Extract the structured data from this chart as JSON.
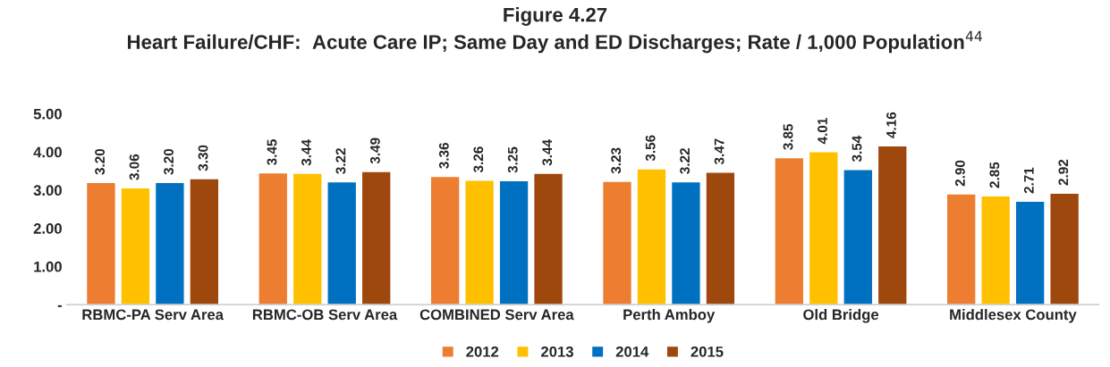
{
  "chart_data": {
    "type": "bar",
    "title": "Figure 4.27",
    "subtitle": "Heart Failure/CHF:  Acute Care IP; Same Day and ED Discharges; Rate / 1,000 Population$^{44}$",
    "categories": [
      "RBMC-PA Serv Area",
      "RBMC-OB Serv Area",
      "COMBINED Serv Area",
      "Perth Amboy",
      "Old Bridge",
      "Middlesex County"
    ],
    "series": [
      {
        "name": "2012",
        "color": "#ed7d31",
        "values": [
          3.2,
          3.45,
          3.36,
          3.23,
          3.85,
          2.9
        ],
        "value_labels": [
          "3.20",
          "3.45",
          "3.36",
          "3.23",
          "3.85",
          "2.90"
        ]
      },
      {
        "name": "2013",
        "color": "#ffc000",
        "values": [
          3.06,
          3.44,
          3.26,
          3.56,
          4.01,
          2.85
        ],
        "value_labels": [
          "3.06",
          "3.44",
          "3.26",
          "3.56",
          "4.01",
          "2.85"
        ]
      },
      {
        "name": "2014",
        "color": "#0070c0",
        "values": [
          3.2,
          3.22,
          3.25,
          3.22,
          3.54,
          2.71
        ],
        "value_labels": [
          "3.20",
          "3.22",
          "3.25",
          "3.22",
          "3.54",
          "2.71"
        ]
      },
      {
        "name": "2015",
        "color": "#9e480e",
        "values": [
          3.3,
          3.49,
          3.44,
          3.47,
          4.16,
          2.92
        ],
        "value_labels": [
          "3.30",
          "3.49",
          "3.44",
          "3.47",
          "4.16",
          "2.92"
        ]
      }
    ],
    "ylim": [
      0,
      5
    ],
    "yticks": [
      {
        "value": 0,
        "label": "-"
      },
      {
        "value": 1,
        "label": "1.00"
      },
      {
        "value": 2,
        "label": "2.00"
      },
      {
        "value": 3,
        "label": "3.00"
      },
      {
        "value": 4,
        "label": "4.00"
      },
      {
        "value": 5,
        "label": "5.00"
      }
    ],
    "grid": false,
    "legend": "bottom"
  }
}
